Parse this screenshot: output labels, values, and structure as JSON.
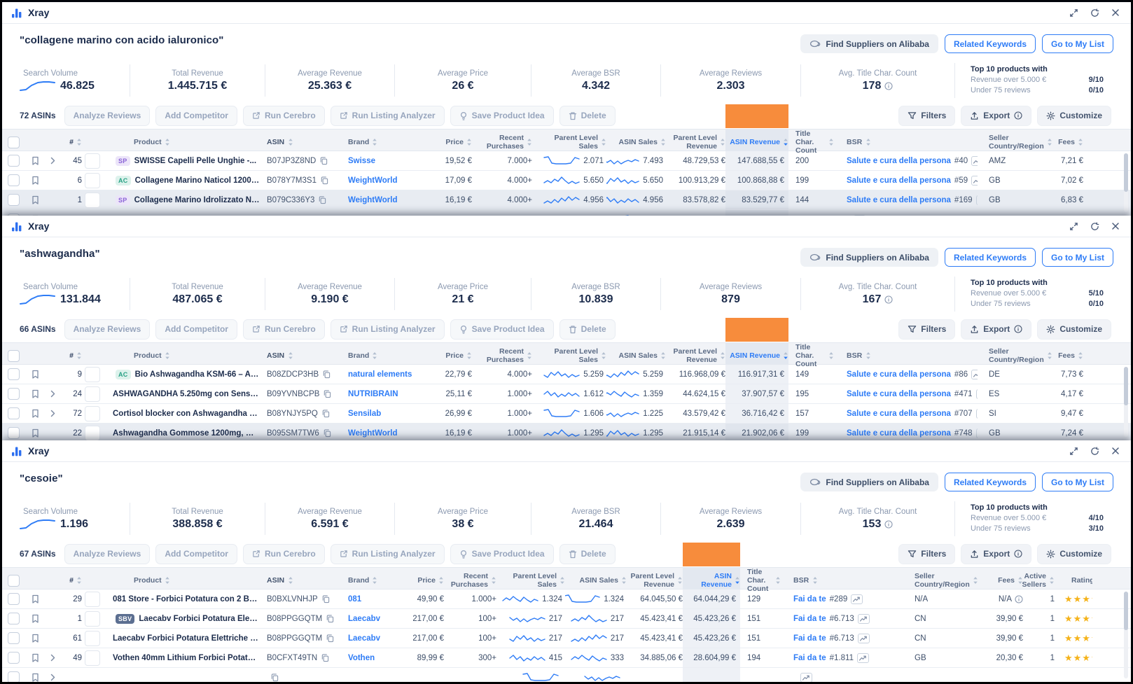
{
  "colors": {
    "brand_blue": "#2c6ff0",
    "link_blue": "#2e7cf6",
    "orange_highlight": "#f78c3c",
    "star_yellow": "#f5b31a",
    "selected_row": "#e8ecf2"
  },
  "window": {
    "title": "Xray"
  },
  "shared": {
    "actions": {
      "find_suppliers": "Find Suppliers on Alibaba",
      "related_keywords": "Related Keywords",
      "go_to_list": "Go to My List"
    },
    "toolbar": {
      "analyze_reviews": "Analyze Reviews",
      "add_competitor": "Add Competitor",
      "run_cerebro": "Run Cerebro",
      "run_listing_analyzer": "Run Listing Analyzer",
      "save_product_idea": "Save Product Idea",
      "delete": "Delete",
      "filters": "Filters",
      "export": "Export",
      "customize": "Customize"
    },
    "top10": {
      "title": "Top 10 products with",
      "revenue_label": "Revenue over 5.000 €",
      "reviews_label": "Under 75 reviews"
    }
  },
  "panels": [
    {
      "keyword": "\"collagene marino con acido ialuronico\"",
      "asin_count": "72 ASINs",
      "stats": [
        {
          "label": "Search Volume",
          "value": "46.825"
        },
        {
          "label": "Total Revenue",
          "value": "1.445.715 €"
        },
        {
          "label": "Average Revenue",
          "value": "25.363 €"
        },
        {
          "label": "Average Price",
          "value": "26 €"
        },
        {
          "label": "Average BSR",
          "value": "4.342"
        },
        {
          "label": "Average Reviews",
          "value": "2.303"
        },
        {
          "label": "Avg. Title Char. Count",
          "value": "178"
        }
      ],
      "top10": {
        "revenue_value": "9/10",
        "reviews_value": "0/10"
      },
      "columns": {
        "num": "#",
        "product": "Product",
        "asin": "ASIN",
        "brand": "Brand",
        "price": "Price",
        "purchases": "Recent Purchases",
        "parent_sales": "Parent Level Sales",
        "asin_sales": "ASIN Sales",
        "parent_revenue": "Parent Level Revenue",
        "asin_revenue": "ASIN Revenue",
        "title_chars": "Title Char. Count",
        "bsr": "BSR",
        "country": "Seller Country/Region",
        "fees": "Fees"
      },
      "extra_columns": false,
      "partial_row": {
        "selected": true
      },
      "rows": [
        {
          "num": "45",
          "expand": true,
          "badge": "SP",
          "thumb": "#ece8e0",
          "title": "SWISSE Capelli Pelle Unghie -...",
          "asin": "B07JP3Z8ND",
          "brand": "Swisse",
          "price": "19,52 €",
          "purchases": "7.000+",
          "parent_sales": "2.071",
          "asin_sales": "7.493",
          "parent_revenue": "48.729,53 €",
          "asin_revenue": "147.688,55 €",
          "title_chars": "200",
          "bsr_category": "Salute e cura della persona",
          "bsr_rank": "#40",
          "country": "AMZ",
          "fees": "7,21 €"
        },
        {
          "num": "6",
          "badge": "AC",
          "thumb": "#31435c",
          "title": "Collagene Marino Naticol 1200mg...",
          "asin": "B078Y7M3S1",
          "brand": "WeightWorld",
          "price": "17,09 €",
          "purchases": "4.000+",
          "parent_sales": "5.650",
          "asin_sales": "5.650",
          "parent_revenue": "100.913,29 €",
          "asin_revenue": "100.868,88 €",
          "title_chars": "199",
          "bsr_category": "Salute e cura della persona",
          "bsr_rank": "#59",
          "country": "GB",
          "fees": "7,02 €"
        },
        {
          "num": "1",
          "badge": "SP",
          "thumb": "#31435c",
          "selected": true,
          "title": "Collagene Marino Idrolizzato Naticol...",
          "asin": "B079C336Y3",
          "brand": "WeightWorld",
          "price": "16,19 €",
          "purchases": "4.000+",
          "parent_sales": "4.956",
          "asin_sales": "4.956",
          "parent_revenue": "83.578,82 €",
          "asin_revenue": "83.529,77 €",
          "title_chars": "144",
          "bsr_category": "Salute e cura della persona",
          "bsr_rank": "#169",
          "country": "GB",
          "fees": "6,83 €"
        }
      ]
    },
    {
      "keyword": "\"ashwagandha\"",
      "asin_count": "66 ASINs",
      "stats": [
        {
          "label": "Search Volume",
          "value": "131.844"
        },
        {
          "label": "Total Revenue",
          "value": "487.065 €"
        },
        {
          "label": "Average Revenue",
          "value": "9.190 €"
        },
        {
          "label": "Average Price",
          "value": "21 €"
        },
        {
          "label": "Average BSR",
          "value": "10.839"
        },
        {
          "label": "Average Reviews",
          "value": "879"
        },
        {
          "label": "Avg. Title Char. Count",
          "value": "167"
        }
      ],
      "top10": {
        "revenue_value": "5/10",
        "reviews_value": "0/10"
      },
      "columns": {
        "num": "#",
        "product": "Product",
        "asin": "ASIN",
        "brand": "Brand",
        "price": "Price",
        "purchases": "Recent Purchases",
        "parent_sales": "Parent Level Sales",
        "asin_sales": "ASIN Sales",
        "parent_revenue": "Parent Level Revenue",
        "asin_revenue": "ASIN Revenue",
        "title_chars": "Title Char. Count",
        "bsr": "BSR",
        "country": "Seller Country/Region",
        "fees": "Fees"
      },
      "extra_columns": false,
      "partial_row": null,
      "rows": [
        {
          "num": "9",
          "badge": "AC",
          "thumb": "#2f3b2f",
          "title": "Bio Ashwagandha KSM-66 – Alto...",
          "asin": "B08ZDCP3HB",
          "brand": "natural elements",
          "price": "22,79 €",
          "purchases": "4.000+",
          "parent_sales": "5.259",
          "asin_sales": "5.259",
          "parent_revenue": "116.968,09 €",
          "asin_revenue": "116.917,31 €",
          "title_chars": "149",
          "bsr_category": "Salute e cura della persona",
          "bsr_rank": "#86",
          "country": "DE",
          "fees": "7,73 €"
        },
        {
          "num": "24",
          "expand": true,
          "thumb": "#e08a3c",
          "title": "ASHWAGANDHA 5.250mg con Sensoril...",
          "asin": "B09YVNBCPB",
          "brand": "NUTRIBRAIN",
          "price": "25,11 €",
          "purchases": "1.000+",
          "parent_sales": "1.612",
          "asin_sales": "1.359",
          "parent_revenue": "44.624,15 €",
          "asin_revenue": "37.907,57 €",
          "title_chars": "195",
          "bsr_category": "Salute e cura della persona",
          "bsr_rank": "#471",
          "country": "ES",
          "fees": "4,17 €"
        },
        {
          "num": "72",
          "expand": true,
          "thumb": "#9fd4d8",
          "title": "Cortisol blocker con Ashwagandha e...",
          "asin": "B08YNJY5PQ",
          "brand": "Sensilab",
          "price": "26,99 €",
          "purchases": "1.000+",
          "parent_sales": "1.606",
          "asin_sales": "1.225",
          "parent_revenue": "43.579,42 €",
          "asin_revenue": "36.716,42 €",
          "title_chars": "157",
          "bsr_category": "Salute e cura della persona",
          "bsr_rank": "#707",
          "country": "SI",
          "fees": "9,47 €"
        },
        {
          "num": "22",
          "thumb": "#b5413a",
          "selected": true,
          "title": "Ashwagandha Gommose 1200mg, Gusto...",
          "asin": "B095SM7TW6",
          "brand": "WeightWorld",
          "price": "16,19 €",
          "purchases": "1.000+",
          "parent_sales": "1.295",
          "asin_sales": "1.295",
          "parent_revenue": "21.915,14 €",
          "asin_revenue": "21.902,06 €",
          "title_chars": "199",
          "bsr_category": "Salute e cura della persona",
          "bsr_rank": "#748",
          "country": "GB",
          "fees": "7,24 €"
        }
      ]
    },
    {
      "keyword": "\"cesoie\"",
      "asin_count": "67 ASINs",
      "stats": [
        {
          "label": "Search Volume",
          "value": "1.196"
        },
        {
          "label": "Total Revenue",
          "value": "388.858 €"
        },
        {
          "label": "Average Revenue",
          "value": "6.591 €"
        },
        {
          "label": "Average Price",
          "value": "38 €"
        },
        {
          "label": "Average BSR",
          "value": "21.464"
        },
        {
          "label": "Average Reviews",
          "value": "2.639"
        },
        {
          "label": "Avg. Title Char. Count",
          "value": "153"
        }
      ],
      "top10": {
        "revenue_value": "4/10",
        "reviews_value": "3/10"
      },
      "columns": {
        "num": "#",
        "product": "Product",
        "asin": "ASIN",
        "brand": "Brand",
        "price": "Price",
        "purchases": "Recent Purchases",
        "parent_sales": "Parent Level Sales",
        "asin_sales": "ASIN Sales",
        "parent_revenue": "Parent Level Revenue",
        "asin_revenue": "ASIN Revenue",
        "title_chars": "Title Char. Count",
        "bsr": "BSR",
        "country": "Seller Country/Region",
        "fees": "Fees",
        "active_sellers": "Active Sellers",
        "rating": "Rating"
      },
      "extra_columns": true,
      "partial_row": {
        "selected": false,
        "expand": true
      },
      "rows": [
        {
          "num": "29",
          "thumb": "#6b7280",
          "title": "081 Store - Forbici Potatura con 2 Batteri...",
          "asin": "B0BXLVNHJP",
          "brand": "081",
          "price": "49,90 €",
          "purchases": "1.000+",
          "parent_sales": "1.324",
          "asin_sales": "1.324",
          "parent_revenue": "64.045,50 €",
          "asin_revenue": "64.044,29 €",
          "title_chars": "129",
          "bsr_category": "Fai da te",
          "bsr_rank": "#289",
          "country": "N/A",
          "fees": "N/A",
          "fees_info": true,
          "active_sellers": "1",
          "rating_stars": true
        },
        {
          "num": "1",
          "badge": "SBV",
          "thumb": "#8a9099",
          "title": "Laecabv Forbici Potatura Elettriche...",
          "asin": "B08PPGGQTM",
          "brand": "Laecabv",
          "price": "217,00 €",
          "purchases": "100+",
          "parent_sales": "217",
          "asin_sales": "217",
          "parent_revenue": "45.423,41 €",
          "asin_revenue": "45.423,26 €",
          "title_chars": "151",
          "bsr_category": "Fai da te",
          "bsr_rank": "#6.713",
          "country": "CN",
          "fees": "39,90 €",
          "active_sellers": "1",
          "rating_stars": true
        },
        {
          "num": "61",
          "thumb": "#8a9099",
          "title": "Laecabv Forbici Potatura Elettriche 40m...",
          "asin": "B08PPGGQTM",
          "brand": "Laecabv",
          "price": "217,00 €",
          "purchases": "100+",
          "parent_sales": "217",
          "asin_sales": "217",
          "parent_revenue": "45.423,41 €",
          "asin_revenue": "45.423,26 €",
          "title_chars": "151",
          "bsr_category": "Fai da te",
          "bsr_rank": "#6.713",
          "country": "CN",
          "fees": "39,90 €",
          "active_sellers": "1",
          "rating_stars": true
        },
        {
          "num": "49",
          "expand": true,
          "thumb": "#7c838d",
          "title": "Vothen 40mm Lithium Forbici Potatura...",
          "asin": "B0CFXT49TN",
          "brand": "Vothen",
          "price": "89,99 €",
          "purchases": "300+",
          "parent_sales": "415",
          "asin_sales": "333",
          "parent_revenue": "34.885,06 €",
          "asin_revenue": "28.604,99 €",
          "title_chars": "194",
          "bsr_category": "Fai da te",
          "bsr_rank": "#1.811",
          "country": "GB",
          "fees": "20,30 €",
          "active_sellers": "1",
          "rating_stars": true
        }
      ]
    }
  ]
}
